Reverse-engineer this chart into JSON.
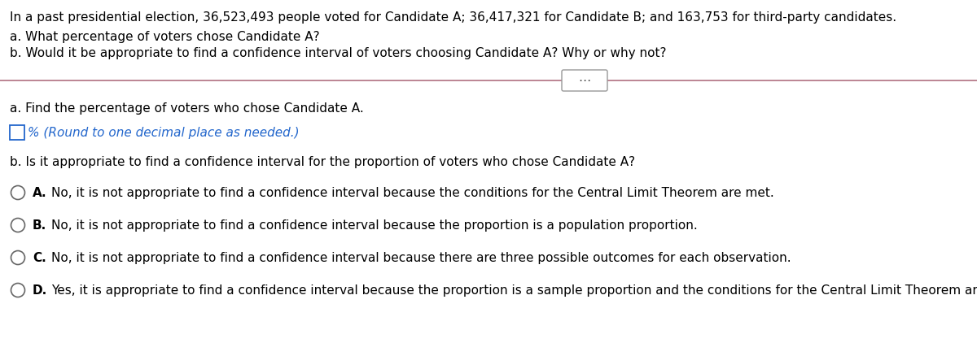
{
  "bg_color": "#ffffff",
  "text_color": "#000000",
  "blue_color": "#2266cc",
  "line_color": "#b07080",
  "title_line1": "In a past presidential election, 36,523,493 people voted for Candidate A; 36,417,321 for Candidate B; and 163,753 for third-party candidates.",
  "title_line2": "a. What percentage of voters chose Candidate A?",
  "title_line3": "b. Would it be appropriate to find a confidence interval of voters choosing Candidate A? Why or why not?",
  "part_a_label": "a. Find the percentage of voters who chose Candidate A.",
  "blue_text": "% (Round to one decimal place as needed.)",
  "part_b_label": "b. Is it appropriate to find a confidence interval for the proportion of voters who chose Candidate A?",
  "options": [
    {
      "letter": "A.",
      "text": "No, it is not appropriate to find a confidence interval because the conditions for the Central Limit Theorem are met."
    },
    {
      "letter": "B.",
      "text": "No, it is not appropriate to find a confidence interval because the proportion is a population proportion."
    },
    {
      "letter": "C.",
      "text": "No, it is not appropriate to find a confidence interval because there are three possible outcomes for each observation."
    },
    {
      "letter": "D.",
      "text": "Yes, it is appropriate to find a confidence interval because the proportion is a sample proportion and the conditions for the Central Limit Theorem are met."
    }
  ],
  "font_size": 11.0,
  "small_font": 10.0
}
